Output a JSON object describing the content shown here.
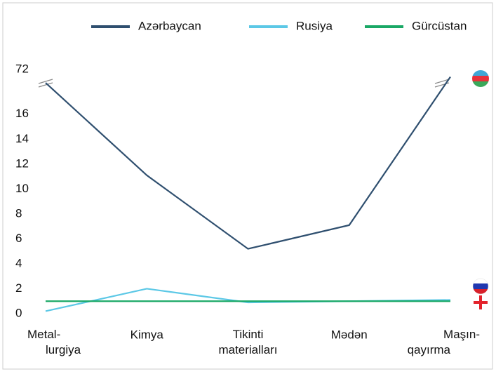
{
  "chart_data": {
    "type": "line",
    "categories": [
      "Metal-\nlurgiya",
      "Kimya",
      "Tikinti\nmaterialları",
      "Mədən",
      "Maşın-\nqayırma"
    ],
    "series": [
      {
        "name": "Azərbaycan",
        "color": "#2f4f6f",
        "values": [
          70,
          11.1,
          5.2,
          7.1,
          71
        ]
      },
      {
        "name": "Rusiya",
        "color": "#5cc8e6",
        "values": [
          0.2,
          2.0,
          0.9,
          1.0,
          1.1
        ]
      },
      {
        "name": "Gürcüstan",
        "color": "#1aa866",
        "values": [
          1.0,
          1.0,
          1.0,
          1.0,
          1.0
        ]
      }
    ],
    "ylim": [
      0,
      72
    ],
    "axis_break": [
      17,
      68
    ],
    "yticks": [
      0,
      2,
      4,
      6,
      8,
      10,
      12,
      14,
      16,
      72
    ],
    "legend": "top"
  }
}
